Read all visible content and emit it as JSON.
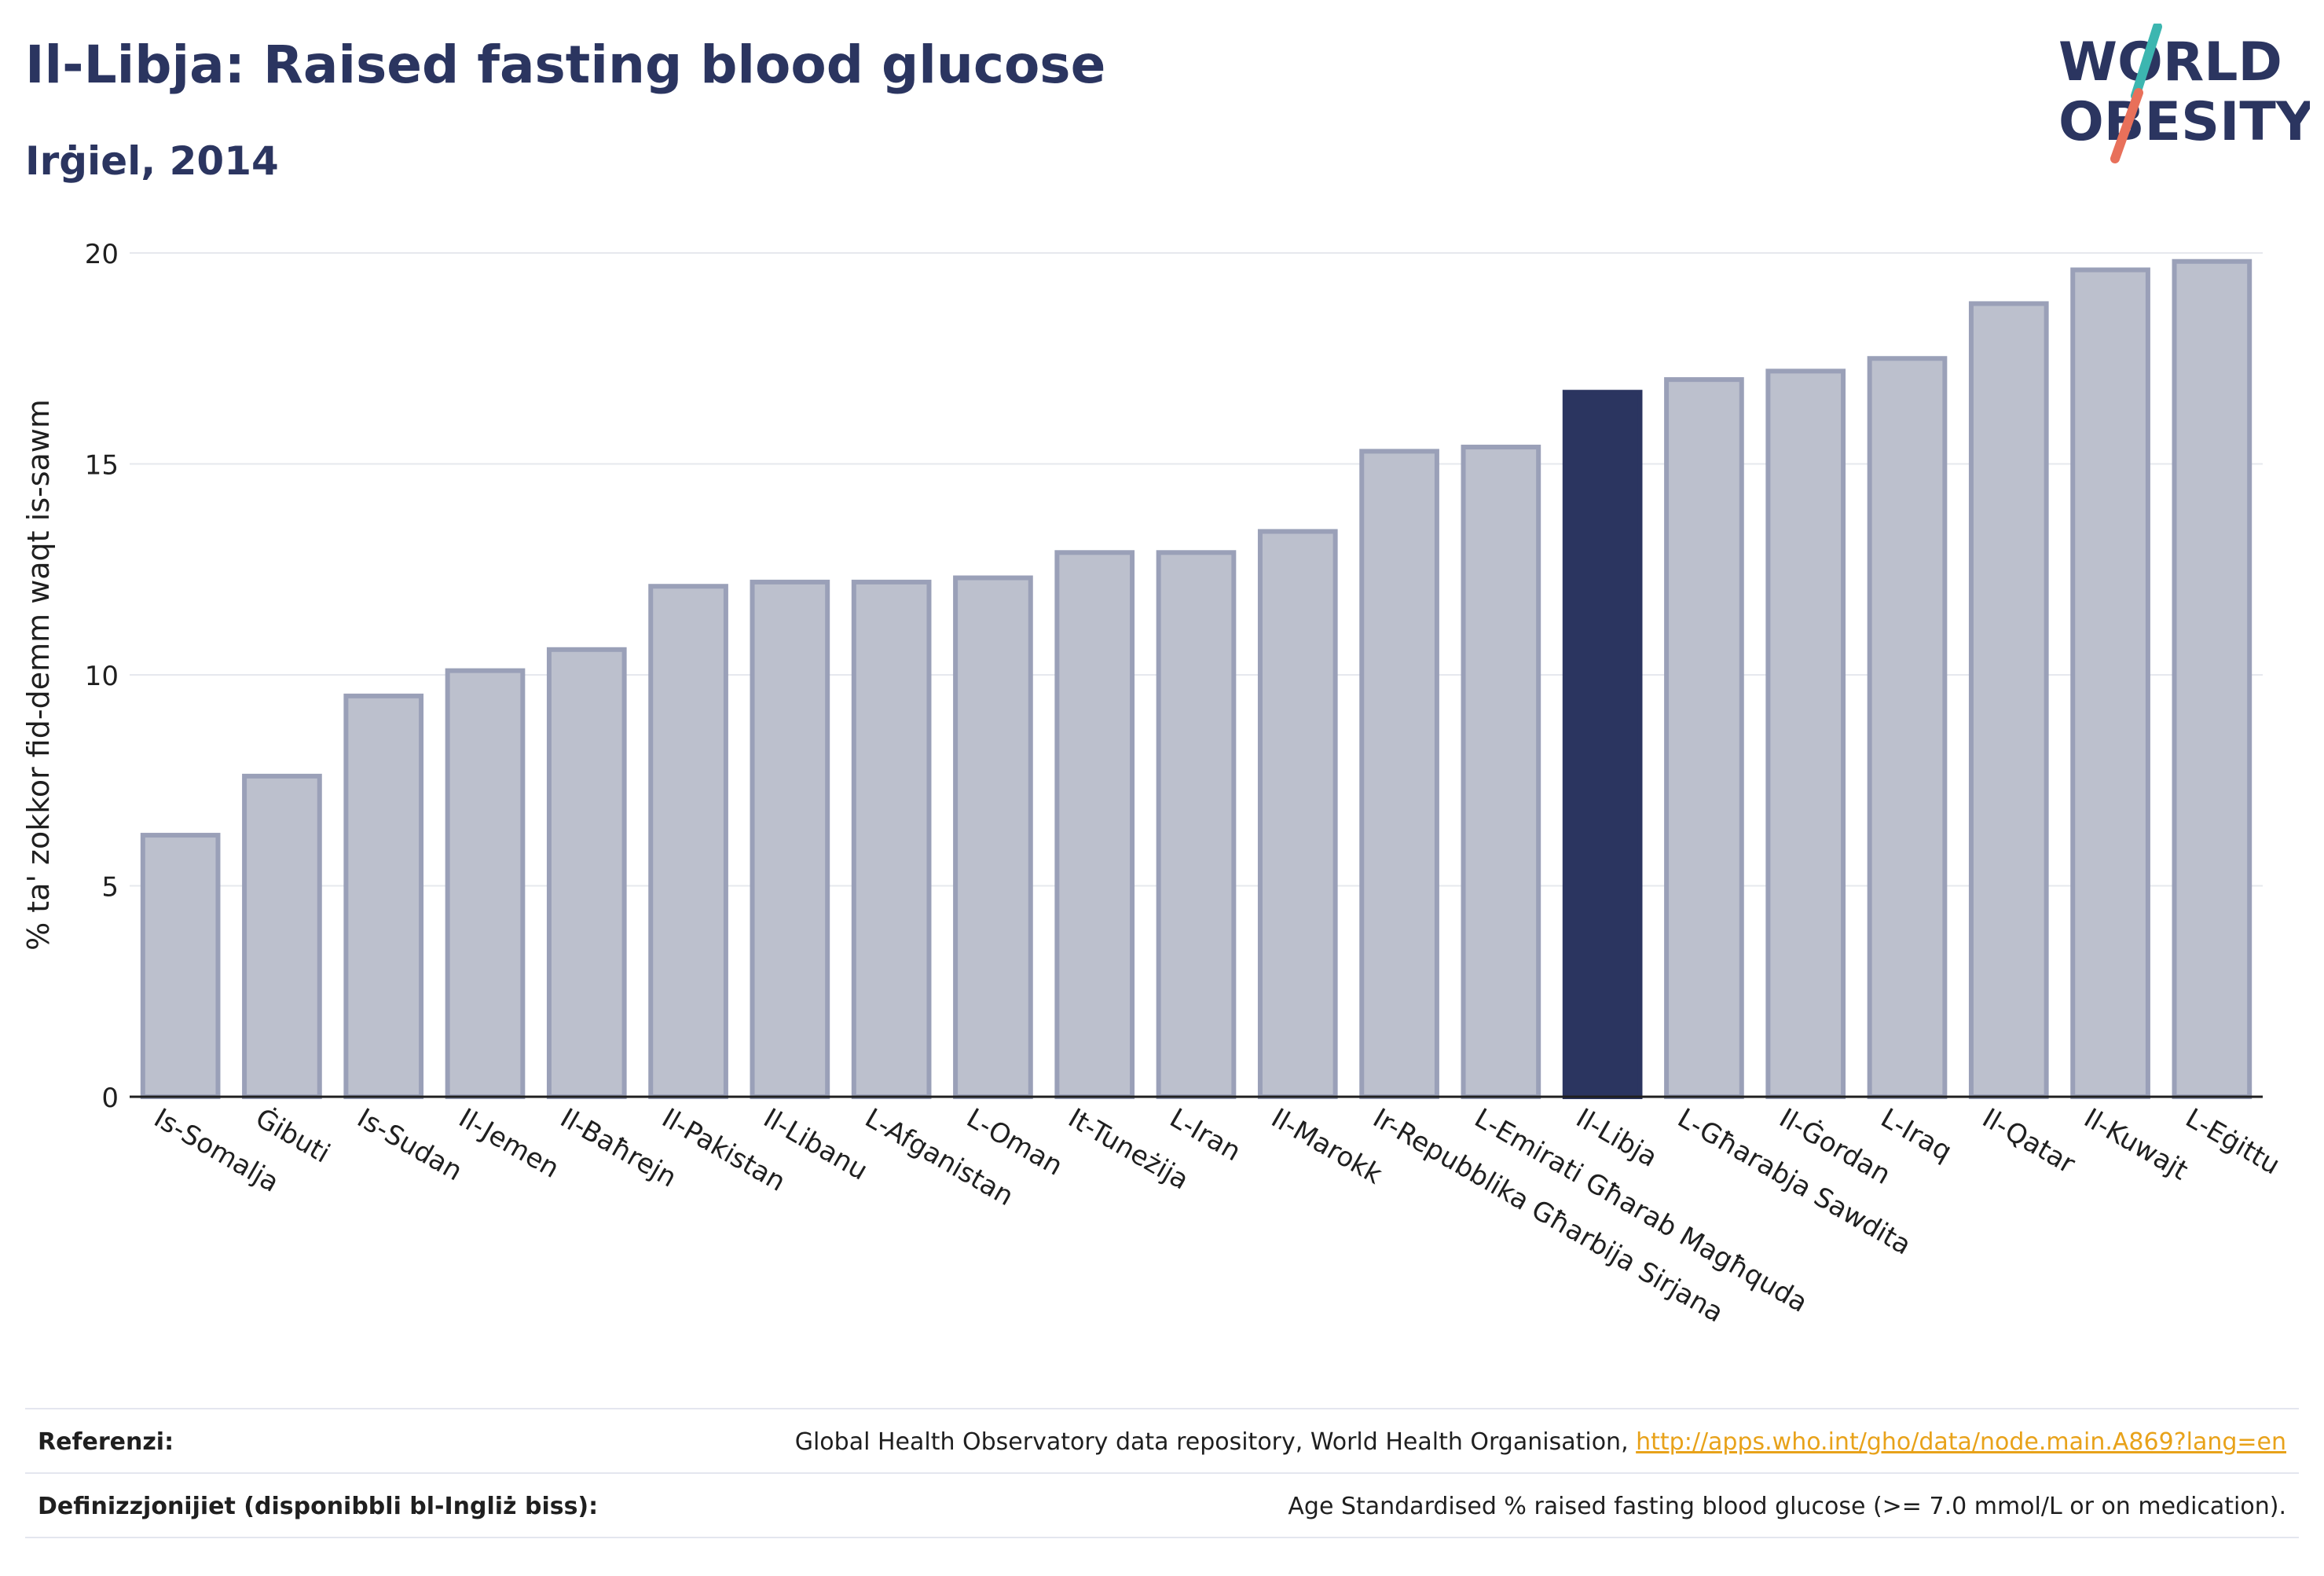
{
  "header": {
    "title": "Il-Libja: Raised fasting blood glucose",
    "subtitle": "Irġiel, 2014"
  },
  "logo": {
    "line1": "WORLD",
    "line2": "OBESITY",
    "accent_teal": "#3cb6b0",
    "accent_red": "#e8705a"
  },
  "colors": {
    "bar_fill": "#bcc0cd",
    "bar_stroke": "#9aa0b8",
    "highlight": "#2b3560",
    "grid": "#e6e8ee",
    "text": "#1f1f1f"
  },
  "chart_data": {
    "type": "bar",
    "title": "Il-Libja: Raised fasting blood glucose",
    "subtitle": "Irġiel, 2014",
    "ylabel": "% ta' zokkor fid-demm waqt is-sawm",
    "xlabel": "",
    "ylim": [
      0,
      20
    ],
    "yticks": [
      0,
      5,
      10,
      15,
      20
    ],
    "grid": true,
    "highlight": "Il-Libja",
    "categories": [
      "Is-Somalja",
      "Ġibuti",
      "Is-Sudan",
      "Il-Jemen",
      "Il-Baħrejn",
      "Il-Pakistan",
      "Il-Libanu",
      "L-Afganistan",
      "L-Oman",
      "It-Tuneżija",
      "L-Iran",
      "Il-Marokk",
      "Ir-Repubblika Għarbija Sirjana",
      "L-Emirati Għarab Magħquda",
      "Il-Libja",
      "L-Għarabja Sawdita",
      "Il-Ġordan",
      "L-Iraq",
      "Il-Qatar",
      "Il-Kuwajt",
      "L-Eġittu"
    ],
    "values": [
      6.2,
      7.6,
      9.5,
      10.1,
      10.6,
      12.1,
      12.2,
      12.2,
      12.3,
      12.9,
      12.9,
      13.4,
      15.3,
      15.4,
      16.7,
      17.0,
      17.2,
      17.5,
      18.8,
      19.6,
      19.8
    ]
  },
  "footer": {
    "references_label": "Referenzi:",
    "references_text": "Global Health Observatory data repository, World Health Organisation, ",
    "references_link": "http://apps.who.int/gho/data/node.main.A869?lang=en",
    "definitions_label": "Definizzjonijiet (disponibbli bl-Ingliż biss):",
    "definitions_text": "Age Standardised % raised fasting blood glucose (>= 7.0 mmol/L or on medication)."
  }
}
